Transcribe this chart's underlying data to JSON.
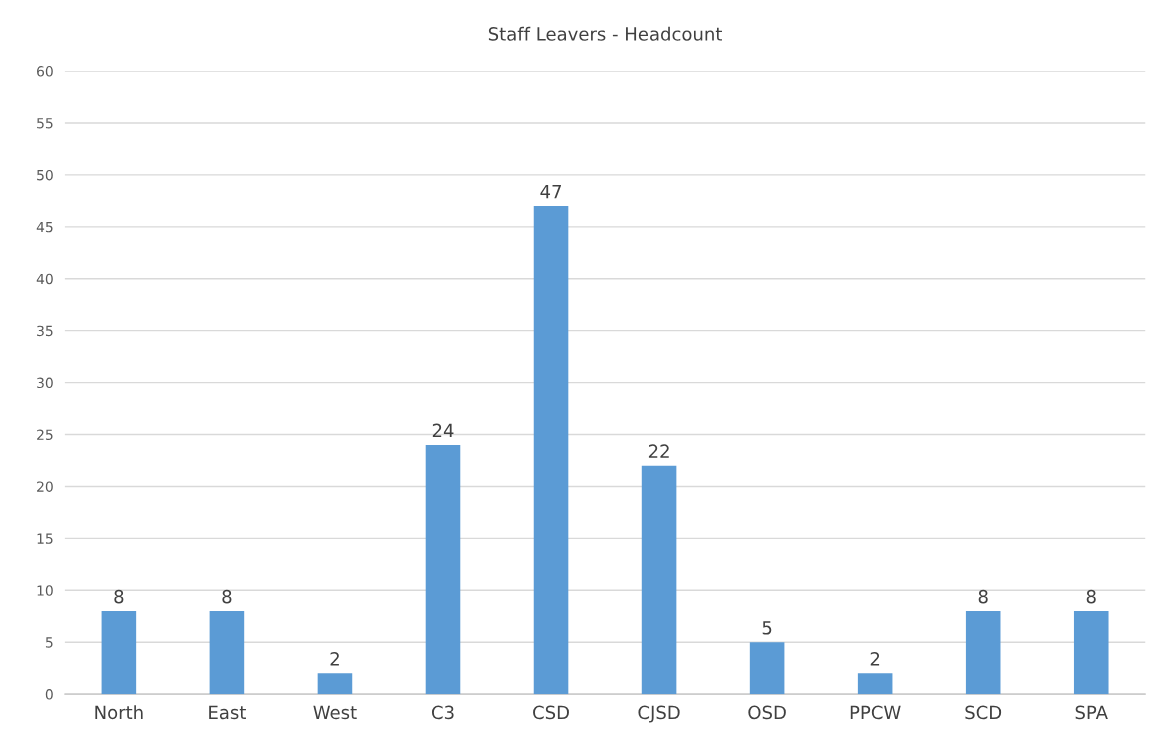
{
  "chart_data": {
    "type": "bar",
    "title": "Staff Leavers - Headcount",
    "categories": [
      "North",
      "East",
      "West",
      "C3",
      "CSD",
      "CJSD",
      "OSD",
      "PPCW",
      "SCD",
      "SPA"
    ],
    "values": [
      8,
      8,
      2,
      24,
      47,
      22,
      5,
      2,
      8,
      8
    ],
    "color": "#5b9bd5",
    "ylim": [
      0,
      60
    ],
    "yticks": [
      0,
      5,
      10,
      15,
      20,
      25,
      30,
      35,
      40,
      45,
      50,
      55,
      60
    ],
    "grid": "y",
    "data_labels": true
  }
}
